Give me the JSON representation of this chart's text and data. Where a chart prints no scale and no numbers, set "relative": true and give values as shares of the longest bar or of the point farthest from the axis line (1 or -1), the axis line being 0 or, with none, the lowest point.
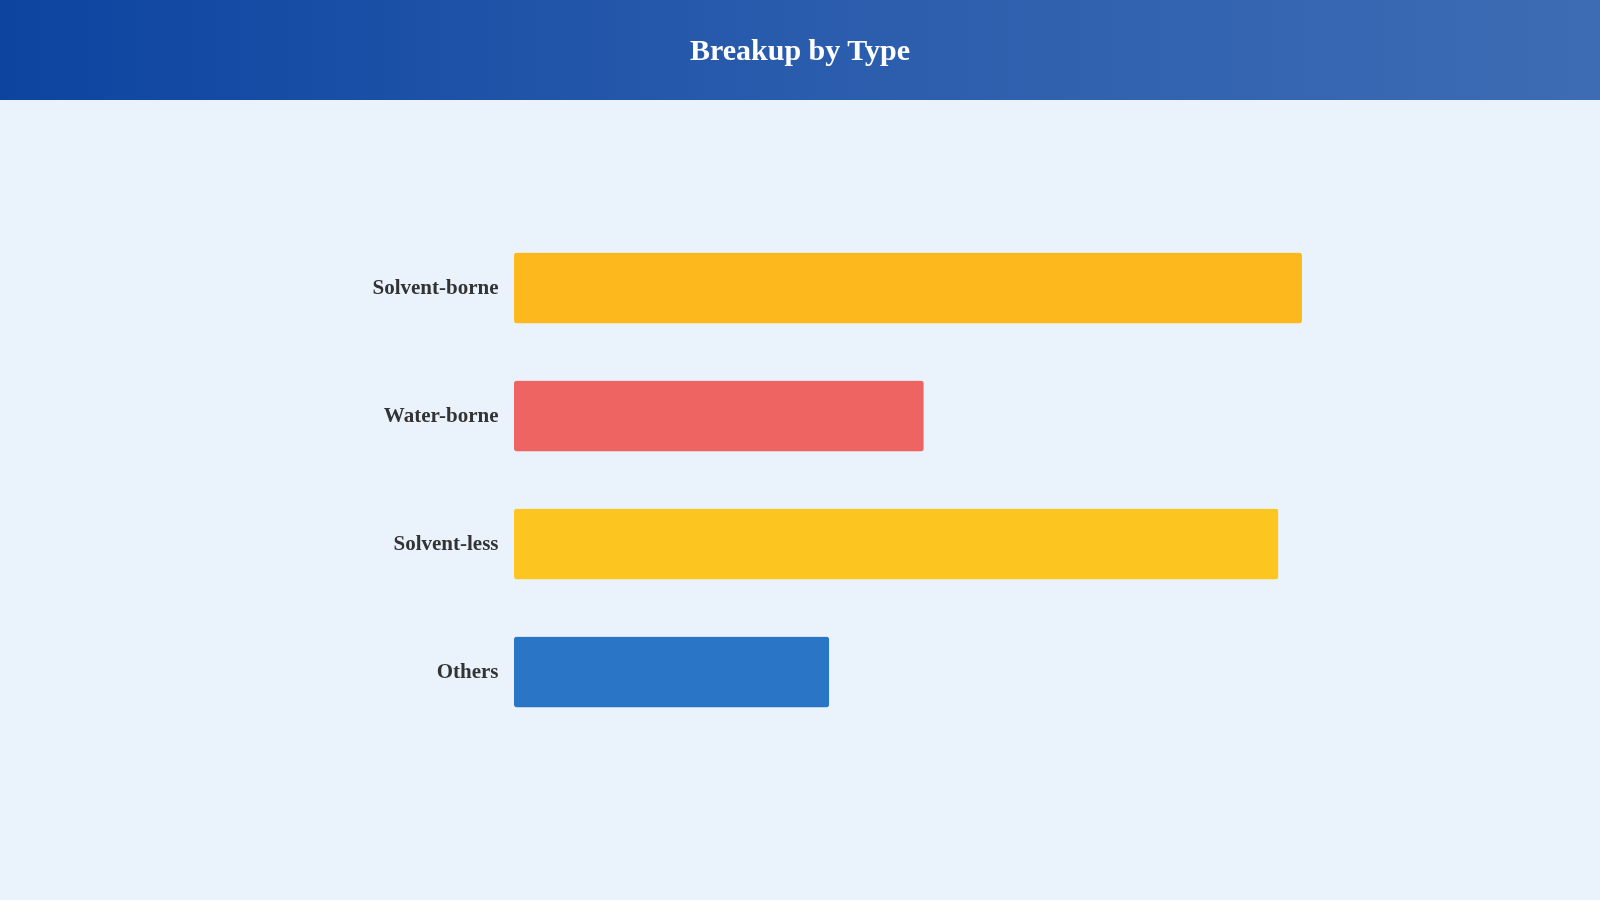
{
  "chart_data": {
    "type": "bar",
    "orientation": "horizontal",
    "relative": true,
    "title": "Breakup by Type",
    "categories": [
      "Solvent-borne",
      "Water-borne",
      "Solvent-less",
      "Others"
    ],
    "values": [
      1,
      0.52,
      0.97,
      0.4
    ],
    "colors": [
      "#fdb81e",
      "#ee6462",
      "#fdc51f",
      "#2b75c7"
    ]
  }
}
